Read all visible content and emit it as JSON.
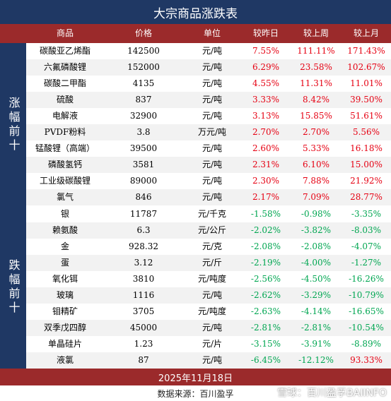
{
  "title": "大宗商品涨跌表",
  "columns": {
    "name": "商品",
    "price": "价格",
    "unit": "单位",
    "day": "较昨日",
    "week": "较上周",
    "month": "较上月"
  },
  "sections": {
    "up_label": "涨幅前十",
    "down_label": "跌幅前十"
  },
  "top_gainers": [
    {
      "name": "碳酸亚乙烯酯",
      "price": "142500",
      "unit": "元/吨",
      "day": "7.55%",
      "week": "111.11%",
      "month": "171.43%"
    },
    {
      "name": "六氟磷酸锂",
      "price": "152000",
      "unit": "元/吨",
      "day": "6.29%",
      "week": "23.58%",
      "month": "102.67%"
    },
    {
      "name": "碳酸二甲酯",
      "price": "4135",
      "unit": "元/吨",
      "day": "4.55%",
      "week": "11.31%",
      "month": "11.01%"
    },
    {
      "name": "硫酸",
      "price": "837",
      "unit": "元/吨",
      "day": "3.33%",
      "week": "8.42%",
      "month": "39.50%"
    },
    {
      "name": "电解液",
      "price": "32900",
      "unit": "元/吨",
      "day": "3.13%",
      "week": "15.85%",
      "month": "51.61%"
    },
    {
      "name": "PVDF粉料",
      "price": "3.8",
      "unit": "万元/吨",
      "day": "2.70%",
      "week": "2.70%",
      "month": "5.56%"
    },
    {
      "name": "锰酸锂（高端）",
      "price": "39500",
      "unit": "元/吨",
      "day": "2.60%",
      "week": "5.33%",
      "month": "16.18%"
    },
    {
      "name": "磷酸氢钙",
      "price": "3581",
      "unit": "元/吨",
      "day": "2.31%",
      "week": "6.10%",
      "month": "15.00%"
    },
    {
      "name": "工业级碳酸锂",
      "price": "89000",
      "unit": "元/吨",
      "day": "2.30%",
      "week": "7.88%",
      "month": "21.92%"
    },
    {
      "name": "氯气",
      "price": "846",
      "unit": "元/吨",
      "day": "2.17%",
      "week": "7.09%",
      "month": "28.77%"
    }
  ],
  "top_losers": [
    {
      "name": "银",
      "price": "11787",
      "unit": "元/千克",
      "day": "-1.58%",
      "week": "-0.98%",
      "month": "-3.35%"
    },
    {
      "name": "赖氨酸",
      "price": "6.3",
      "unit": "元/公斤",
      "day": "-2.02%",
      "week": "-3.82%",
      "month": "-8.03%"
    },
    {
      "name": "金",
      "price": "928.32",
      "unit": "元/克",
      "day": "-2.08%",
      "week": "-2.08%",
      "month": "-4.07%"
    },
    {
      "name": "蛋",
      "price": "3.12",
      "unit": "元/斤",
      "day": "-2.19%",
      "week": "-4.00%",
      "month": "-1.27%"
    },
    {
      "name": "氧化铒",
      "price": "3810",
      "unit": "元/吨度",
      "day": "-2.56%",
      "week": "-4.50%",
      "month": "-16.26%"
    },
    {
      "name": "玻璃",
      "price": "1116",
      "unit": "元/吨",
      "day": "-2.62%",
      "week": "-3.29%",
      "month": "-10.79%"
    },
    {
      "name": "钼精矿",
      "price": "3705",
      "unit": "元/吨度",
      "day": "-2.63%",
      "week": "-4.14%",
      "month": "-16.65%"
    },
    {
      "name": "双季戊四醇",
      "price": "45000",
      "unit": "元/吨",
      "day": "-2.81%",
      "week": "-2.81%",
      "month": "-10.54%"
    },
    {
      "name": "单晶硅片",
      "price": "1.23",
      "unit": "元/片",
      "day": "-3.15%",
      "week": "-3.91%",
      "month": "-8.89%"
    },
    {
      "name": "液氯",
      "price": "87",
      "unit": "元/吨",
      "day": "-6.45%",
      "week": "-12.12%",
      "month": "93.33%"
    }
  ],
  "footer": {
    "date": "2025年11月18日",
    "source": "数据来源：百川盈孚"
  },
  "watermark": {
    "text": "雪球：百川盈孚BAIINFO",
    "icon": "snowball-icon"
  },
  "colors": {
    "navy": "#1f3864",
    "maroon": "#9b2a2b",
    "up": "#e60012",
    "down": "#00a651"
  }
}
